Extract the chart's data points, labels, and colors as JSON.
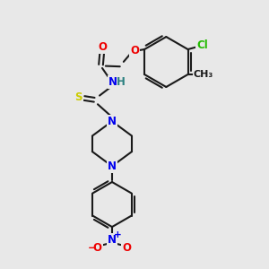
{
  "fig_bg": "#e8e8e8",
  "bond_color": "#1a1a1a",
  "bond_width": 1.5,
  "atom_colors": {
    "C": "#1a1a1a",
    "H": "#2c8080",
    "N": "#0000ee",
    "O": "#ee0000",
    "S": "#cccc00",
    "Cl": "#22bb00"
  },
  "font_size": 8.5,
  "xlim": [
    0,
    10
  ],
  "ylim": [
    0,
    10
  ]
}
